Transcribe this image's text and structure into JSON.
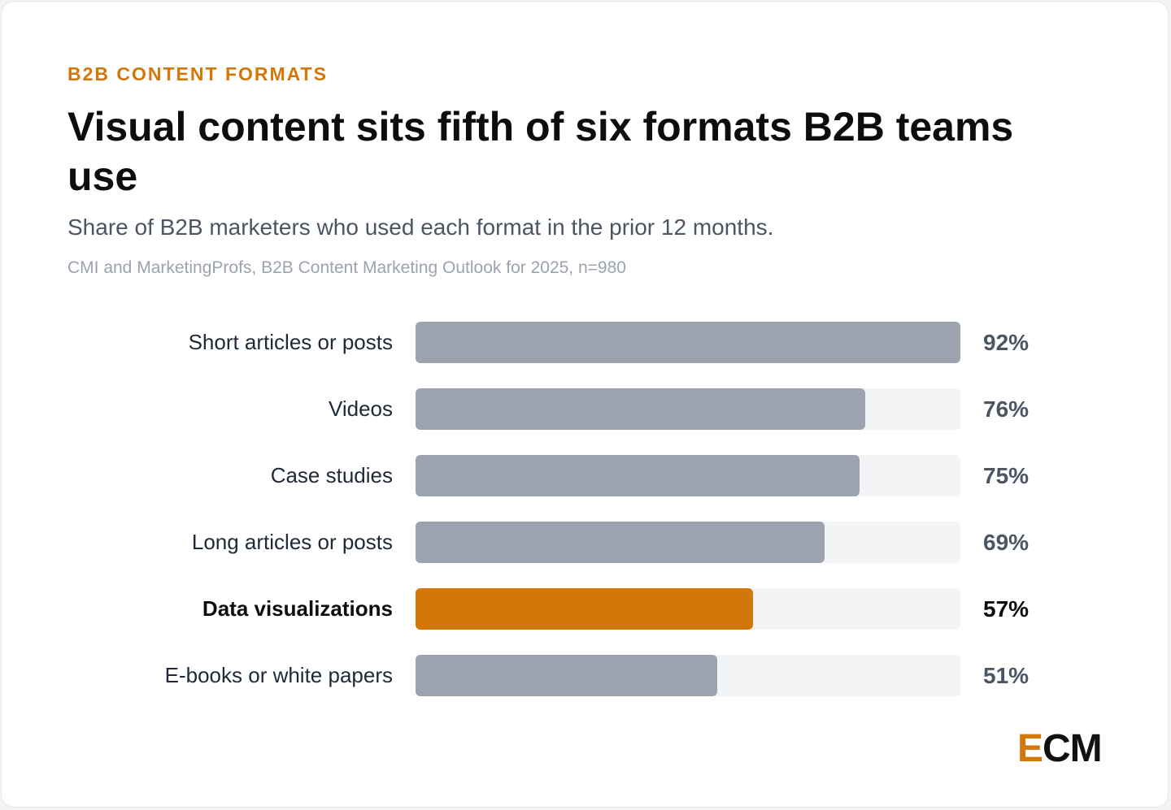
{
  "header": {
    "eyebrow": "B2B CONTENT FORMATS",
    "title": "Visual content sits fifth of six formats B2B teams use",
    "subtitle": "Share of B2B marketers who used each format in the prior 12 months.",
    "source": "CMI and MarketingProfs, B2B Content Marketing Outlook for 2025, n=980"
  },
  "brand": {
    "logo_accent": "E",
    "logo_rest": "CM"
  },
  "colors": {
    "accent": "#d4770b",
    "bar": "#9ca3af",
    "track": "#f3f4f6"
  },
  "chart_data": {
    "type": "bar",
    "orientation": "horizontal",
    "categories": [
      "Short articles or posts",
      "Videos",
      "Case studies",
      "Long articles or posts",
      "Data visualizations",
      "E-books or white papers"
    ],
    "values": [
      92,
      76,
      75,
      69,
      57,
      51
    ],
    "value_labels": [
      "92%",
      "76%",
      "75%",
      "69%",
      "57%",
      "51%"
    ],
    "highlight_category": "Data visualizations",
    "xlim": [
      0,
      92
    ],
    "grid": false,
    "legend": "none"
  }
}
